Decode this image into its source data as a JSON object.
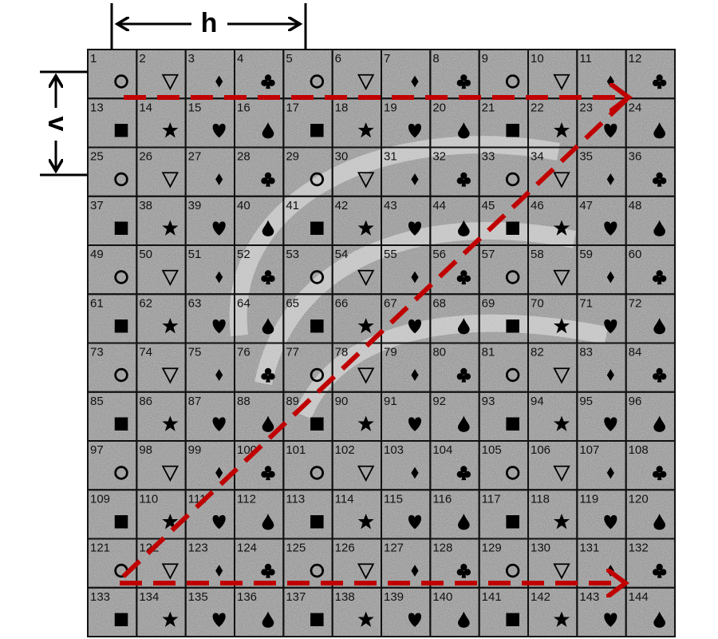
{
  "dimension_labels": {
    "horizontal": "h",
    "vertical": "v"
  },
  "cells": [
    "1",
    "2",
    "3",
    "4",
    "5",
    "6",
    "7",
    "8",
    "9",
    "10",
    "11",
    "12",
    "13",
    "14",
    "15",
    "16",
    "17",
    "18",
    "19",
    "20",
    "21",
    "22",
    "23",
    "24",
    "25",
    "26",
    "27",
    "28",
    "29",
    "30",
    "31",
    "32",
    "33",
    "34",
    "35",
    "36",
    "37",
    "38",
    "39",
    "40",
    "41",
    "42",
    "43",
    "44",
    "45",
    "46",
    "47",
    "48",
    "49",
    "50",
    "51",
    "52",
    "53",
    "54",
    "55",
    "56",
    "57",
    "58",
    "59",
    "60",
    "61",
    "62",
    "63",
    "64",
    "65",
    "66",
    "67",
    "68",
    "69",
    "70",
    "71",
    "72",
    "73",
    "74",
    "75",
    "76",
    "77",
    "78",
    "79",
    "80",
    "81",
    "82",
    "83",
    "84",
    "85",
    "86",
    "87",
    "88",
    "89",
    "90",
    "91",
    "92",
    "93",
    "94",
    "95",
    "96",
    "97",
    "98",
    "99",
    "100",
    "101",
    "102",
    "103",
    "104",
    "105",
    "106",
    "107",
    "108",
    "109",
    "110",
    "111",
    "112",
    "113",
    "114",
    "115",
    "116",
    "117",
    "118",
    "119",
    "120",
    "121",
    "122",
    "123",
    "124",
    "125",
    "126",
    "127",
    "128",
    "129",
    "130",
    "131",
    "132",
    "133",
    "134",
    "135",
    "136",
    "137",
    "138",
    "139",
    "140",
    "141",
    "142",
    "143",
    "144"
  ]
}
